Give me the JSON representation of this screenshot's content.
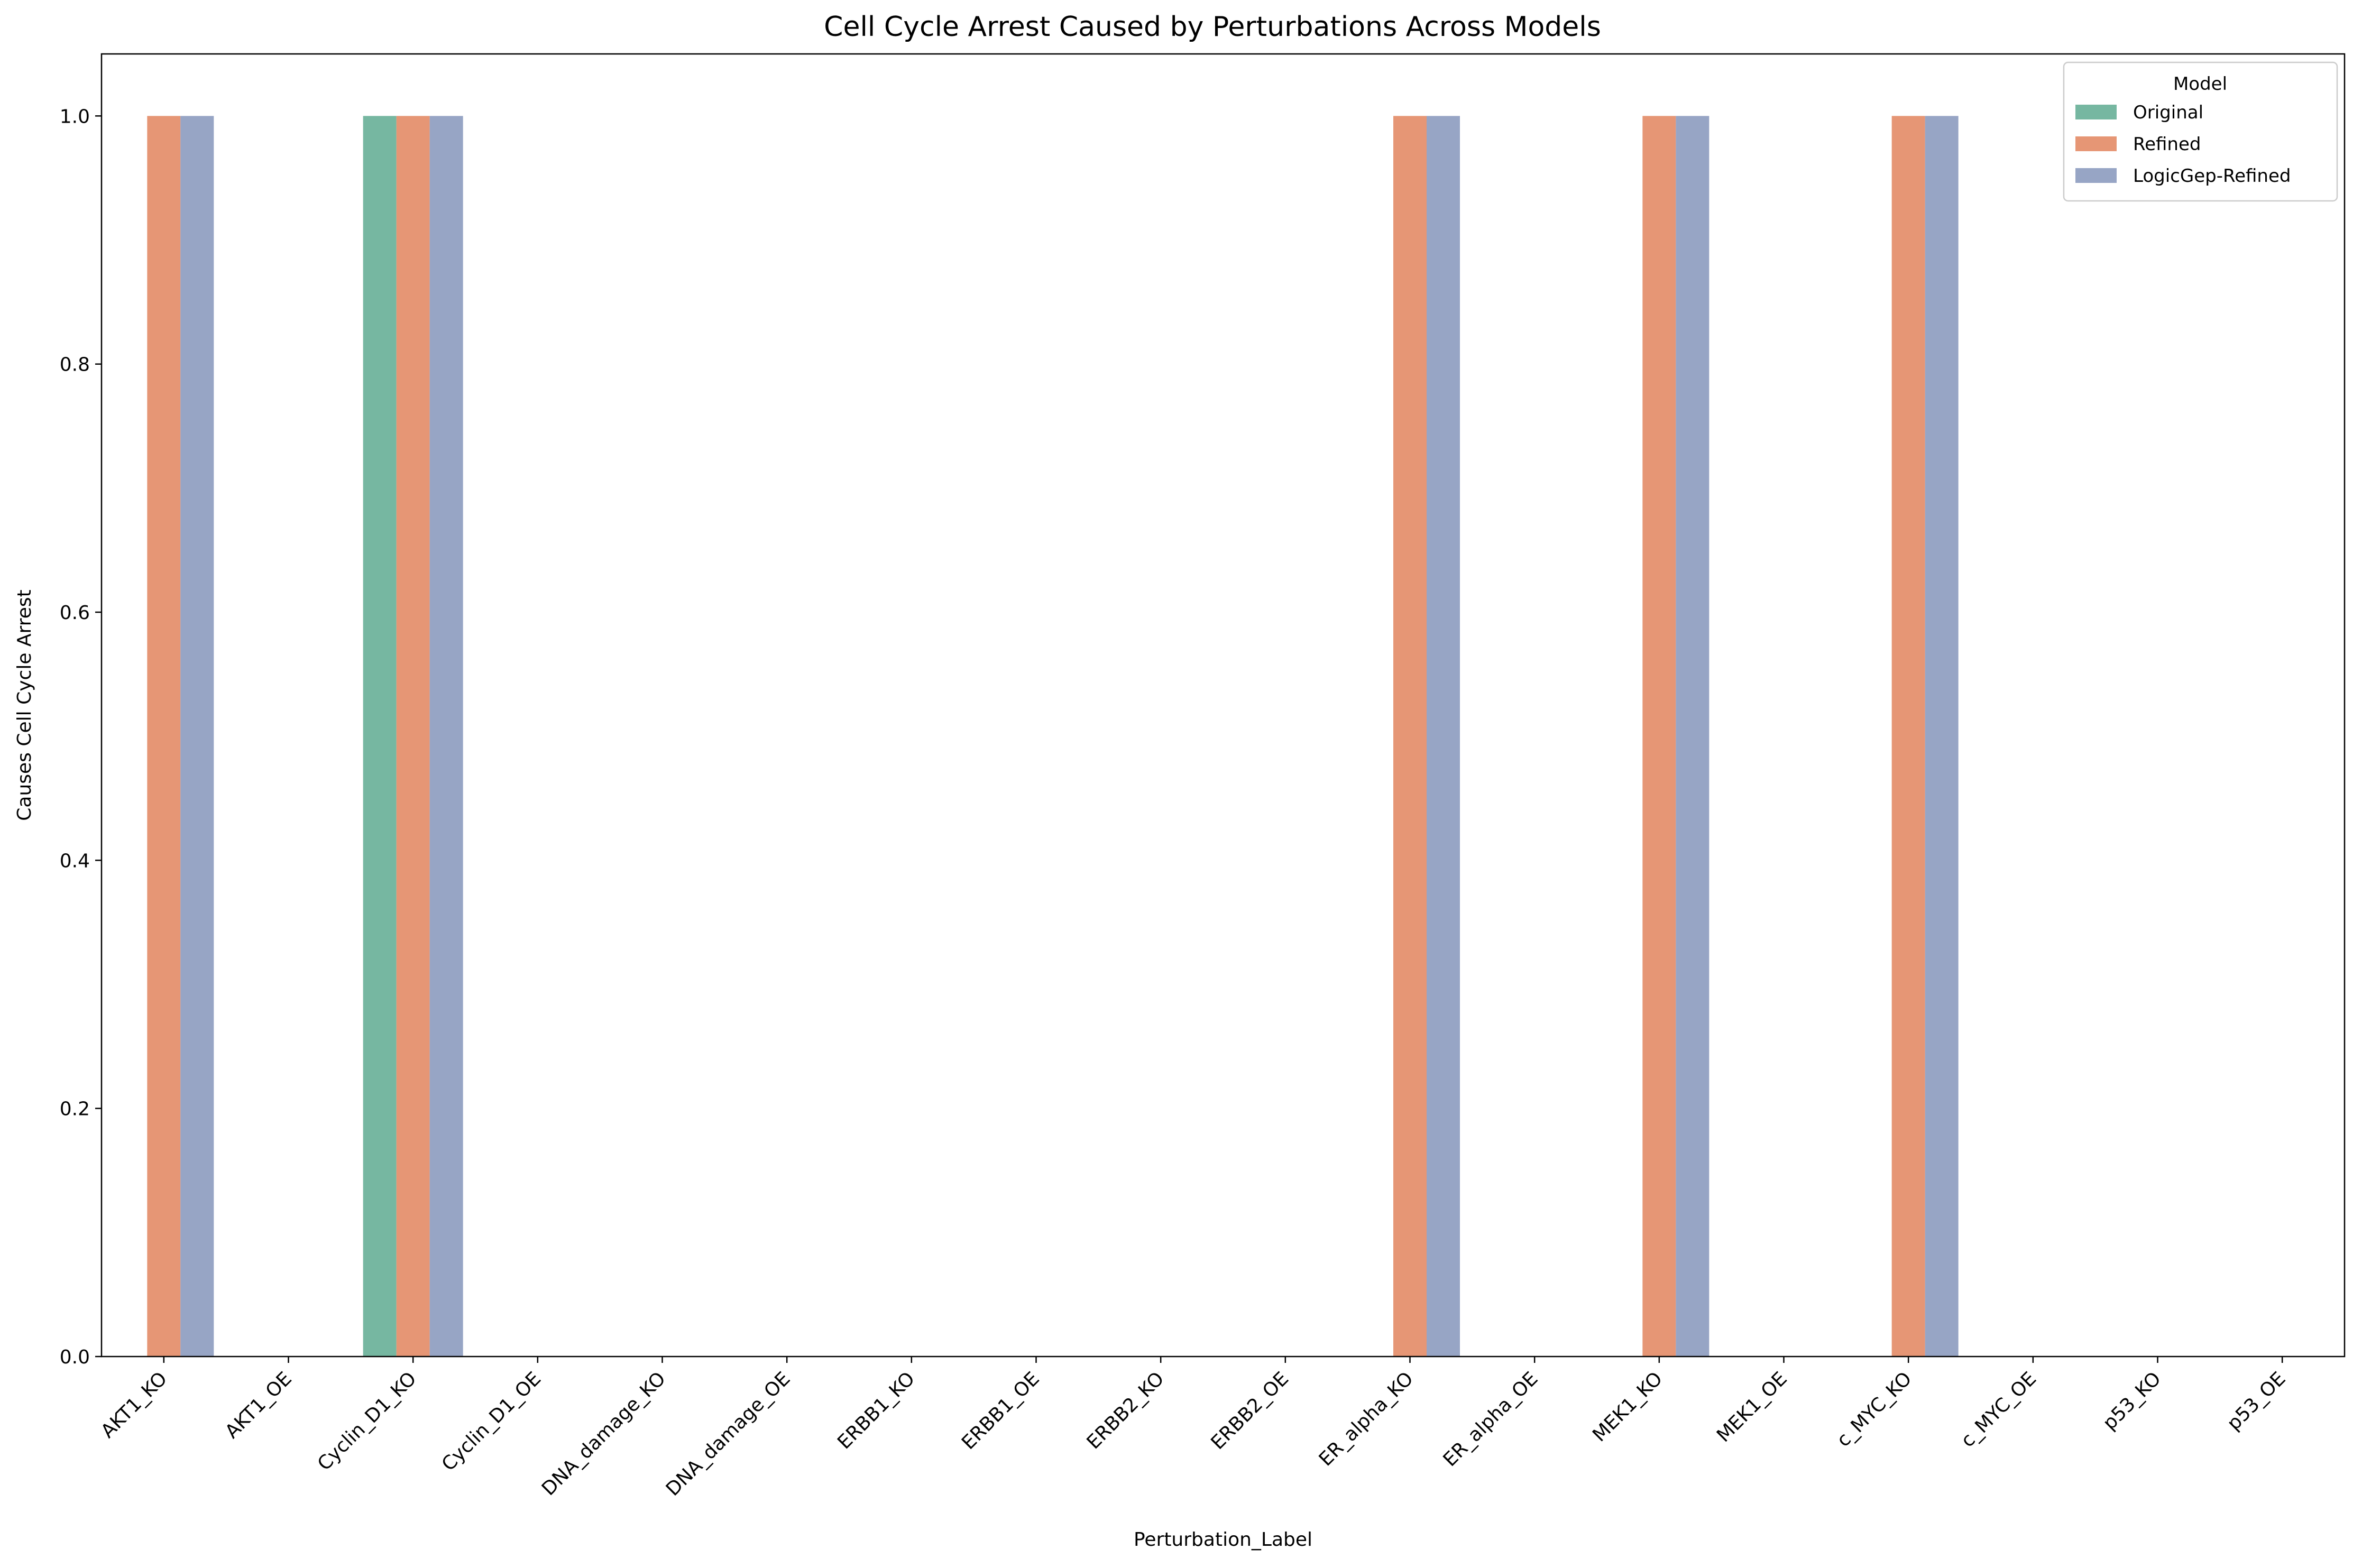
{
  "chart_data": {
    "type": "bar",
    "title": "Cell Cycle Arrest Caused by Perturbations Across Models",
    "xlabel": "Perturbation_Label",
    "ylabel": "Causes Cell Cycle Arrest",
    "ylim": [
      0,
      1.05
    ],
    "yticks": [
      "0.0",
      "0.2",
      "0.4",
      "0.6",
      "0.8",
      "1.0"
    ],
    "categories": [
      "AKT1_KO",
      "AKT1_OE",
      "Cyclin_D1_KO",
      "Cyclin_D1_OE",
      "DNA_damage_KO",
      "DNA_damage_OE",
      "ERBB1_KO",
      "ERBB1_OE",
      "ERBB2_KO",
      "ERBB2_OE",
      "ER_alpha_KO",
      "ER_alpha_OE",
      "MEK1_KO",
      "MEK1_OE",
      "c_MYC_KO",
      "c_MYC_OE",
      "p53_KO",
      "p53_OE"
    ],
    "series": [
      {
        "name": "Original",
        "color": "#76b7a1",
        "values": [
          0,
          0,
          1,
          0,
          0,
          0,
          0,
          0,
          0,
          0,
          0,
          0,
          0,
          0,
          0,
          0,
          0,
          0
        ]
      },
      {
        "name": "Refined",
        "color": "#e69675",
        "values": [
          1,
          0,
          1,
          0,
          0,
          0,
          0,
          0,
          0,
          0,
          1,
          0,
          1,
          0,
          1,
          0,
          0,
          0
        ]
      },
      {
        "name": "LogicGep-Refined",
        "color": "#97a5c5",
        "values": [
          1,
          0,
          1,
          0,
          0,
          0,
          0,
          0,
          0,
          0,
          1,
          0,
          1,
          0,
          1,
          0,
          0,
          0
        ]
      }
    ],
    "legend": {
      "title": "Model",
      "placement": "top-right"
    },
    "grid": false
  }
}
